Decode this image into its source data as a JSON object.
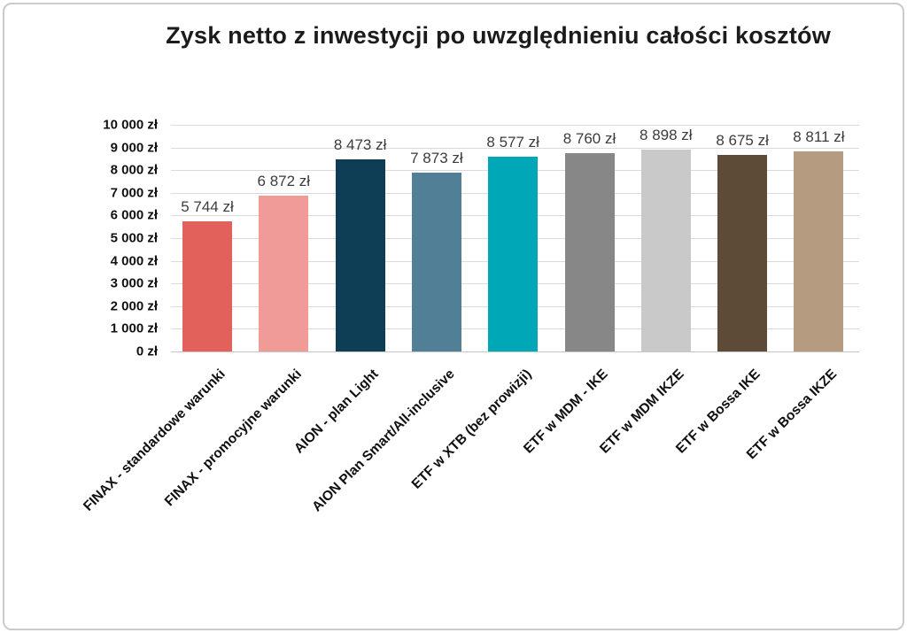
{
  "frame": {
    "border_color": "#cbcbcb",
    "background": "#ffffff"
  },
  "chart_data": {
    "type": "bar",
    "title": "Zysk netto z inwestycji po uwzględnieniu całości kosztów",
    "categories": [
      "FINAX - standardowe warunki",
      "FINAX - promocyjne warunki",
      "AION - plan Light",
      "AION Plan Smart/All-inclusive",
      "ETF w XTB (bez prowizji)",
      "ETF w MDM - IKE",
      "ETF w MDM IKZE",
      "ETF w Bossa IKE",
      "ETF w Bossa IKZE"
    ],
    "values": [
      5744,
      6872,
      8473,
      7873,
      8577,
      8760,
      8898,
      8675,
      8811
    ],
    "value_labels": [
      "5 744 zł",
      "6 872 zł",
      "8 473 zł",
      "7 873 zł",
      "8 577 zł",
      "8 760 zł",
      "8 898 zł",
      "8 675 zł",
      "8 811 zł"
    ],
    "bar_colors": [
      "#e2615a",
      "#f09b97",
      "#0e3e55",
      "#517f95",
      "#00a7b7",
      "#878787",
      "#c9c9ca",
      "#5d4a37",
      "#b59c81"
    ],
    "y_ticks": [
      "10 000 zł",
      "9 000 zł",
      "8 000 zł",
      "7 000 zł",
      "6 000 zł",
      "5 000 zł",
      "4 000 zł",
      "3 000 zł",
      "2 000 zł",
      "1 000 zł",
      "0 zł"
    ],
    "ylim": [
      0,
      10000
    ],
    "grid": true,
    "legend": false,
    "xlabel": "",
    "ylabel": ""
  }
}
